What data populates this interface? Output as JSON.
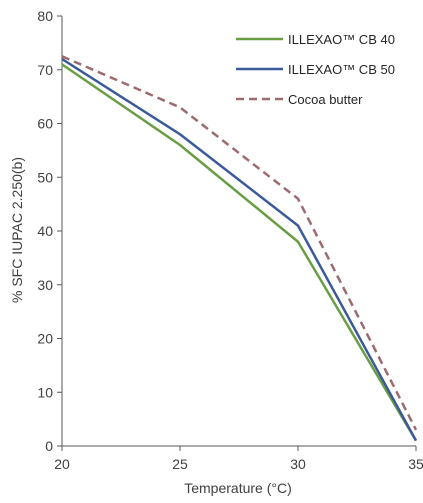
{
  "chart_data": {
    "type": "line",
    "title": "",
    "xlabel": "Temperature (°C)",
    "ylabel": "% SFC IUPAC 2.250(b)",
    "x": [
      20,
      25,
      30,
      35
    ],
    "xlim": [
      20,
      35
    ],
    "ylim": [
      0,
      80
    ],
    "x_ticks": [
      "20",
      "25",
      "30",
      "35"
    ],
    "y_ticks": [
      "0",
      "10",
      "20",
      "30",
      "40",
      "50",
      "60",
      "70",
      "80"
    ],
    "grid": false,
    "legend_position": "top-right",
    "series": [
      {
        "name": "ILLEXAO™ CB 40",
        "values": [
          71,
          56,
          38,
          1
        ],
        "color": "#6a9e45",
        "style": "solid"
      },
      {
        "name": "ILLEXAO™ CB 50",
        "values": [
          72,
          58,
          41,
          1
        ],
        "color": "#3a5a9a",
        "style": "solid"
      },
      {
        "name": "Cocoa butter",
        "values": [
          72.5,
          63,
          46,
          3
        ],
        "color": "#9b6b6f",
        "style": "dashed"
      }
    ]
  }
}
